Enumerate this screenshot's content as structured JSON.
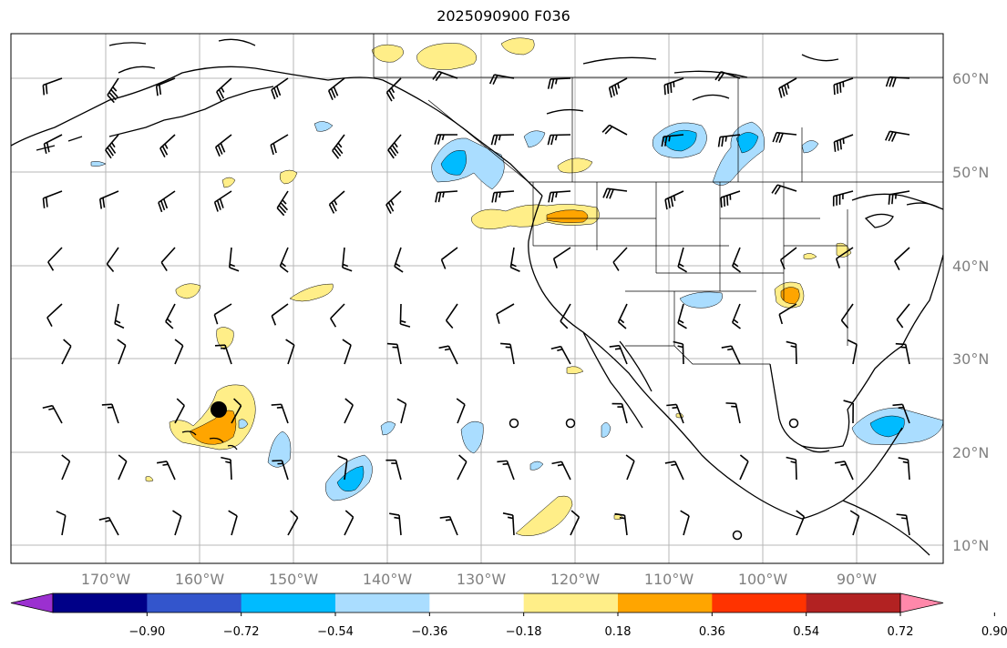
{
  "title": "2025090900 F036",
  "map": {
    "lat_labels": [
      "60°N",
      "50°N",
      "40°N",
      "30°N",
      "20°N",
      "10°N"
    ],
    "lon_labels": [
      "170°W",
      "160°W",
      "150°W",
      "140°W",
      "130°W",
      "120°W",
      "110°W",
      "100°W",
      "90°W"
    ]
  },
  "colorbar": {
    "labels": [
      "−0.90",
      "−0.72",
      "−0.54",
      "−0.36",
      "−0.18",
      "0.18",
      "0.36",
      "0.54",
      "0.72",
      "0.90"
    ],
    "under_color": "#9b30d0",
    "over_color": "#ff88aa",
    "colors": [
      "#000088",
      "#3355cc",
      "#00bbff",
      "#aaddff",
      "#ffffff",
      "#ffee88",
      "#ffa500",
      "#ff3300",
      "#b22222"
    ]
  },
  "marker": {
    "label": ""
  }
}
